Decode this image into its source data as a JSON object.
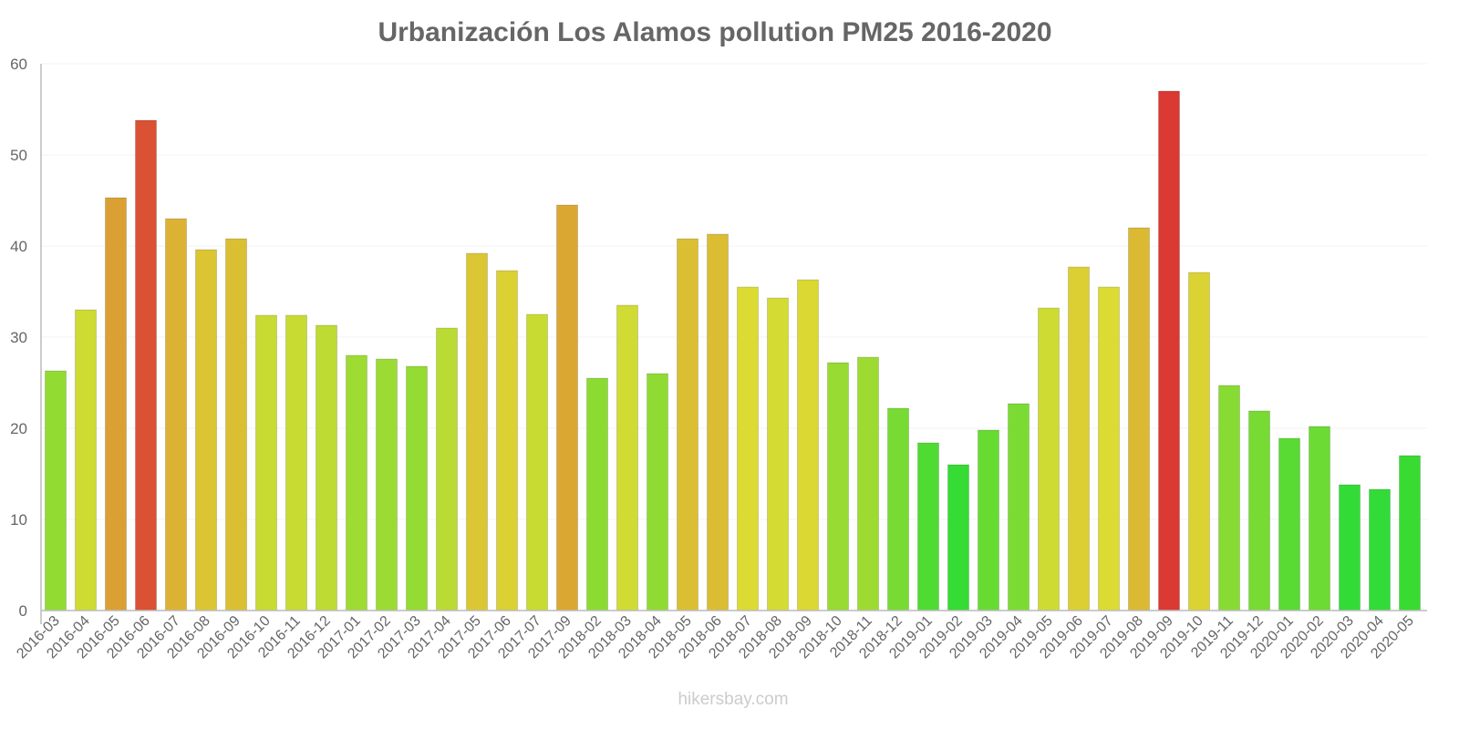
{
  "chart_data": {
    "type": "bar",
    "title": "Urbanización Los Alamos pollution PM25 2016-2020",
    "xlabel": "",
    "ylabel": "",
    "ylim": [
      0,
      60
    ],
    "yticks": [
      0,
      10,
      20,
      30,
      40,
      50,
      60
    ],
    "grid": true,
    "categories": [
      "2016-03",
      "2016-04",
      "2016-05",
      "2016-06",
      "2016-07",
      "2016-08",
      "2016-09",
      "2016-10",
      "2016-11",
      "2016-12",
      "2017-01",
      "2017-02",
      "2017-03",
      "2017-04",
      "2017-05",
      "2017-06",
      "2017-07",
      "2017-09",
      "2018-02",
      "2018-03",
      "2018-04",
      "2018-05",
      "2018-06",
      "2018-07",
      "2018-08",
      "2018-09",
      "2018-10",
      "2018-11",
      "2018-12",
      "2019-01",
      "2019-02",
      "2019-03",
      "2019-04",
      "2019-05",
      "2019-06",
      "2019-07",
      "2019-08",
      "2019-09",
      "2019-10",
      "2019-11",
      "2019-12",
      "2020-01",
      "2020-02",
      "2020-03",
      "2020-04",
      "2020-05"
    ],
    "values": [
      26.3,
      33,
      45.3,
      53.8,
      43,
      39.6,
      40.8,
      32.4,
      32.4,
      31.3,
      28,
      27.6,
      26.8,
      31,
      39.2,
      37.3,
      32.5,
      44.5,
      25.5,
      33.5,
      26,
      40.8,
      41.3,
      35.5,
      34.3,
      36.3,
      27.2,
      27.8,
      22.2,
      18.4,
      16,
      19.8,
      22.7,
      33.2,
      37.7,
      35.5,
      42,
      57,
      37.1,
      24.7,
      21.9,
      18.9,
      20.2,
      13.8,
      13.3,
      17
    ]
  },
  "credit": "hikersbay.com"
}
